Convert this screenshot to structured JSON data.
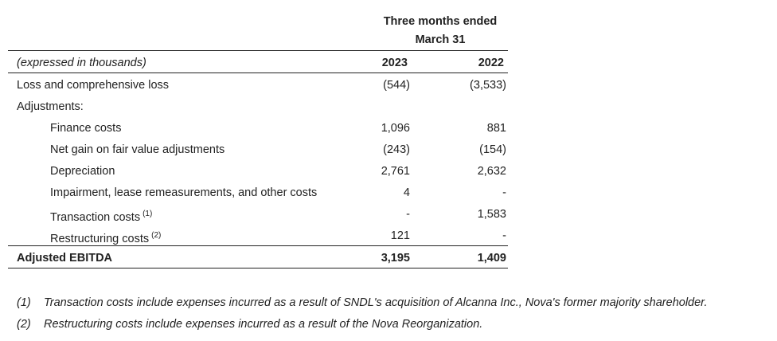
{
  "header": {
    "period": "Three months ended",
    "date": "March 31"
  },
  "table": {
    "unit": "(expressed in thousands)",
    "columns": [
      "2023",
      "2022"
    ],
    "rows": [
      {
        "label": "Loss and comprehensive loss",
        "values": [
          "(544)",
          "(3,533)"
        ]
      }
    ],
    "adjustments": {
      "label": "Adjustments:",
      "rows": [
        {
          "label": "Finance costs",
          "values": [
            "1,096",
            "881"
          ]
        },
        {
          "label": "Net gain on fair value adjustments",
          "values": [
            "(243)",
            "(154)"
          ]
        },
        {
          "label": "Depreciation",
          "values": [
            "2,761",
            "2,632"
          ]
        },
        {
          "label": "Impairment, lease remeasurements, and other costs",
          "values": [
            "4",
            "-"
          ]
        },
        {
          "label": "Transaction costs",
          "note": "(1)",
          "values": [
            "-",
            "1,583"
          ]
        },
        {
          "label": "Restructuring costs",
          "note": "(2)",
          "values": [
            "121",
            "-"
          ]
        }
      ]
    },
    "total": {
      "label": "Adjusted EBITDA",
      "values": [
        "3,195",
        "1,409"
      ]
    }
  },
  "footnotes": [
    {
      "marker": "(1)",
      "text": "Transaction costs include expenses incurred as a result of SNDL's acquisition of Alcanna Inc., Nova's former majority shareholder."
    },
    {
      "marker": "(2)",
      "text": "Restructuring costs include expenses incurred as a result of the Nova Reorganization."
    }
  ]
}
